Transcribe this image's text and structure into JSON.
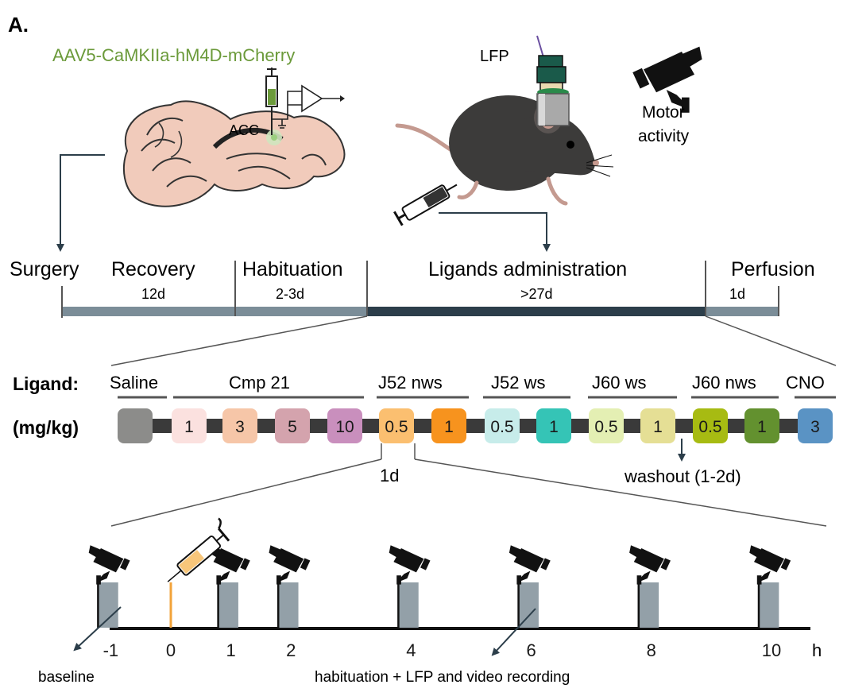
{
  "panel_label": "A.",
  "virus": {
    "label": "AAV5-CaMKIIa-hM4D-mCherry",
    "color": "#6b9a3a"
  },
  "brain": {
    "region": "ACC"
  },
  "mouse": {
    "electrode_label": "LFP"
  },
  "camera": {
    "label_line1": "Motor",
    "label_line2": "activity"
  },
  "timeline": {
    "phases": [
      {
        "label": "Surgery",
        "duration": ""
      },
      {
        "label": "Recovery",
        "duration": "12d"
      },
      {
        "label": "Habituation",
        "duration": "2-3d"
      },
      {
        "label": "Ligands administration",
        "duration": ">27d"
      },
      {
        "label": "Perfusion",
        "duration": "1d"
      }
    ]
  },
  "ligands": {
    "row_label": "Ligand:",
    "dose_label": "(mg/kg)",
    "groups": [
      {
        "name": "Saline",
        "doses": [
          {
            "value": "",
            "color": "#8c8c8a"
          }
        ]
      },
      {
        "name": "Cmp 21",
        "doses": [
          {
            "value": "1",
            "color": "#fbe1df"
          },
          {
            "value": "3",
            "color": "#f6c6a8"
          },
          {
            "value": "5",
            "color": "#d4a3ad"
          },
          {
            "value": "10",
            "color": "#c98fbd"
          }
        ]
      },
      {
        "name": "J52 nws",
        "doses": [
          {
            "value": "0.5",
            "color": "#fbbf70"
          },
          {
            "value": "1",
            "color": "#f7931e"
          }
        ]
      },
      {
        "name": "J52 ws",
        "doses": [
          {
            "value": "0.5",
            "color": "#c7ecea"
          },
          {
            "value": "1",
            "color": "#35c4b6"
          }
        ]
      },
      {
        "name": "J60 ws",
        "doses": [
          {
            "value": "0.5",
            "color": "#e4efb3"
          },
          {
            "value": "1",
            "color": "#e5df95"
          }
        ]
      },
      {
        "name": "J60 nws",
        "doses": [
          {
            "value": "0.5",
            "color": "#a7bb12"
          },
          {
            "value": "1",
            "color": "#63912f"
          }
        ]
      },
      {
        "name": "CNO",
        "doses": [
          {
            "value": "3",
            "color": "#5a93c4"
          }
        ]
      }
    ],
    "interval": "1d",
    "washout": "washout (1-2d)"
  },
  "recording": {
    "ticks": [
      "-1",
      "0",
      "1",
      "2",
      "4",
      "6",
      "8",
      "10"
    ],
    "unit": "h",
    "baseline_label": "baseline",
    "recording_label": "habituation + LFP and video recording"
  }
}
